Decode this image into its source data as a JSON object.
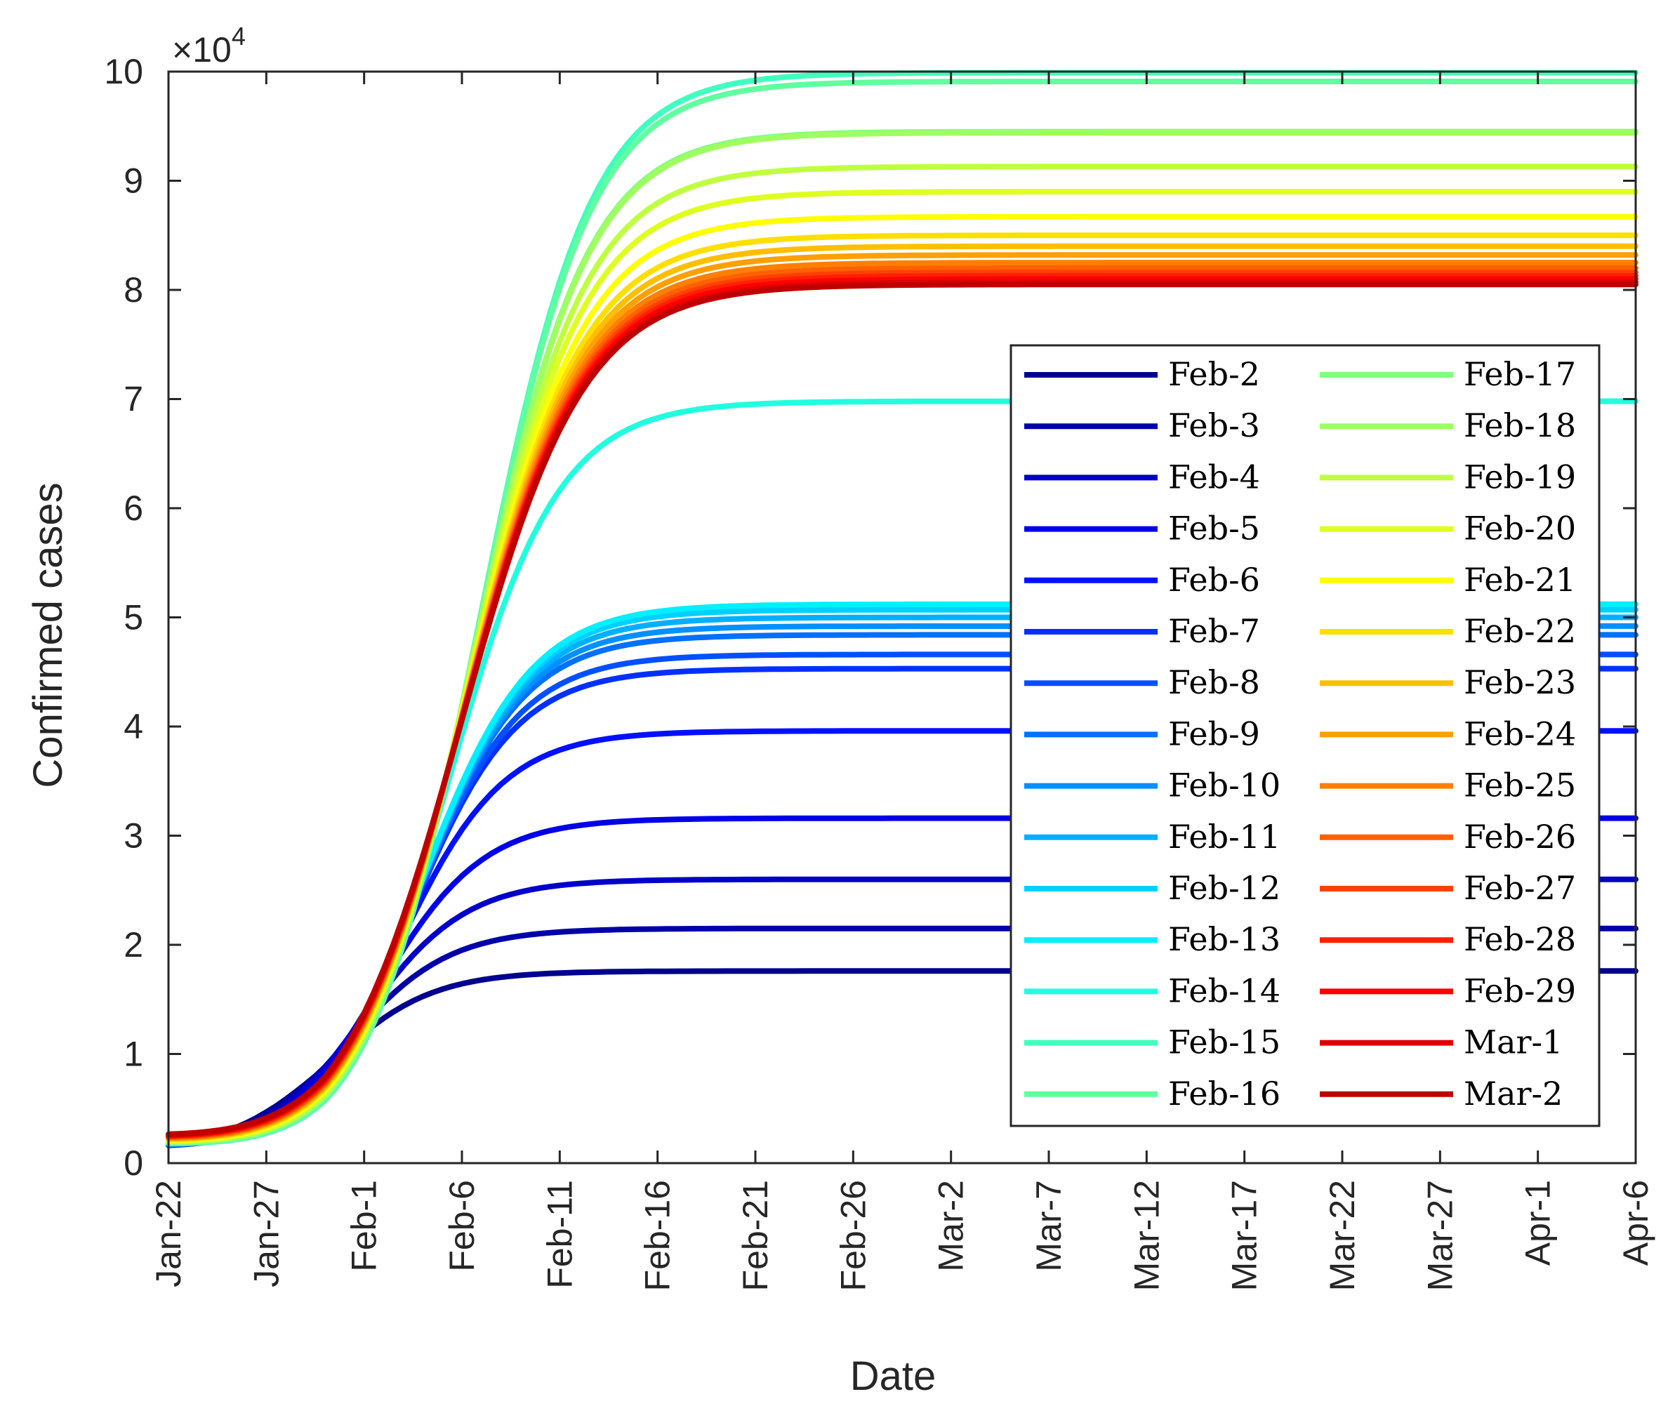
{
  "chart_data": {
    "type": "line",
    "title": "",
    "xlabel": "Date",
    "ylabel": "Confirmed cases",
    "y_exponent_label": "×10",
    "y_exponent_power": "4",
    "ylim": [
      0,
      10
    ],
    "y_ticks": [
      "0",
      "1",
      "2",
      "3",
      "4",
      "5",
      "6",
      "7",
      "8",
      "9",
      "10"
    ],
    "x_ticks": [
      "Jan-22",
      "Jan-27",
      "Feb-1",
      "Feb-6",
      "Feb-11",
      "Feb-16",
      "Feb-21",
      "Feb-26",
      "Mar-2",
      "Mar-7",
      "Mar-12",
      "Mar-17",
      "Mar-22",
      "Mar-27",
      "Apr-1",
      "Apr-6"
    ],
    "x_days_range": [
      0,
      75
    ],
    "y_units": "x10^4 confirmed cases",
    "legend_position": "center-right",
    "series": [
      {
        "name": "Feb-2",
        "color": "#00008f",
        "final": 1.76
      },
      {
        "name": "Feb-3",
        "color": "#0000a8",
        "final": 2.15
      },
      {
        "name": "Feb-4",
        "color": "#0000c8",
        "final": 2.6
      },
      {
        "name": "Feb-5",
        "color": "#0000e8",
        "final": 3.16
      },
      {
        "name": "Feb-6",
        "color": "#0010ff",
        "final": 3.96
      },
      {
        "name": "Feb-7",
        "color": "#0030ff",
        "final": 4.53
      },
      {
        "name": "Feb-8",
        "color": "#0050ff",
        "final": 4.66
      },
      {
        "name": "Feb-9",
        "color": "#0070ff",
        "final": 4.84
      },
      {
        "name": "Feb-10",
        "color": "#0090ff",
        "final": 4.92
      },
      {
        "name": "Feb-11",
        "color": "#00b0ff",
        "final": 5.0
      },
      {
        "name": "Feb-12",
        "color": "#00d0ff",
        "final": 5.07
      },
      {
        "name": "Feb-13",
        "color": "#00f0ff",
        "final": 5.12
      },
      {
        "name": "Feb-14",
        "color": "#20ffdf",
        "final": 6.98
      },
      {
        "name": "Feb-15",
        "color": "#40ffbf",
        "final": 9.99
      },
      {
        "name": "Feb-16",
        "color": "#60ff9f",
        "final": 9.91
      },
      {
        "name": "Feb-17",
        "color": "#80ff80",
        "final": 9.45
      },
      {
        "name": "Feb-18",
        "color": "#9fff60",
        "final": 9.44
      },
      {
        "name": "Feb-19",
        "color": "#bfff40",
        "final": 9.13
      },
      {
        "name": "Feb-20",
        "color": "#dfff20",
        "final": 8.9
      },
      {
        "name": "Feb-21",
        "color": "#ffff00",
        "final": 8.67
      },
      {
        "name": "Feb-22",
        "color": "#ffdf00",
        "final": 8.5
      },
      {
        "name": "Feb-23",
        "color": "#ffbf00",
        "final": 8.4
      },
      {
        "name": "Feb-24",
        "color": "#ff9f00",
        "final": 8.32
      },
      {
        "name": "Feb-25",
        "color": "#ff8000",
        "final": 8.25
      },
      {
        "name": "Feb-26",
        "color": "#ff6000",
        "final": 8.2
      },
      {
        "name": "Feb-27",
        "color": "#ff4000",
        "final": 8.16
      },
      {
        "name": "Feb-28",
        "color": "#ff2000",
        "final": 8.13
      },
      {
        "name": "Feb-29",
        "color": "#ff0000",
        "final": 8.1
      },
      {
        "name": "Mar-1",
        "color": "#df0000",
        "final": 8.07
      },
      {
        "name": "Mar-2",
        "color": "#bf0000",
        "final": 8.05
      }
    ]
  }
}
